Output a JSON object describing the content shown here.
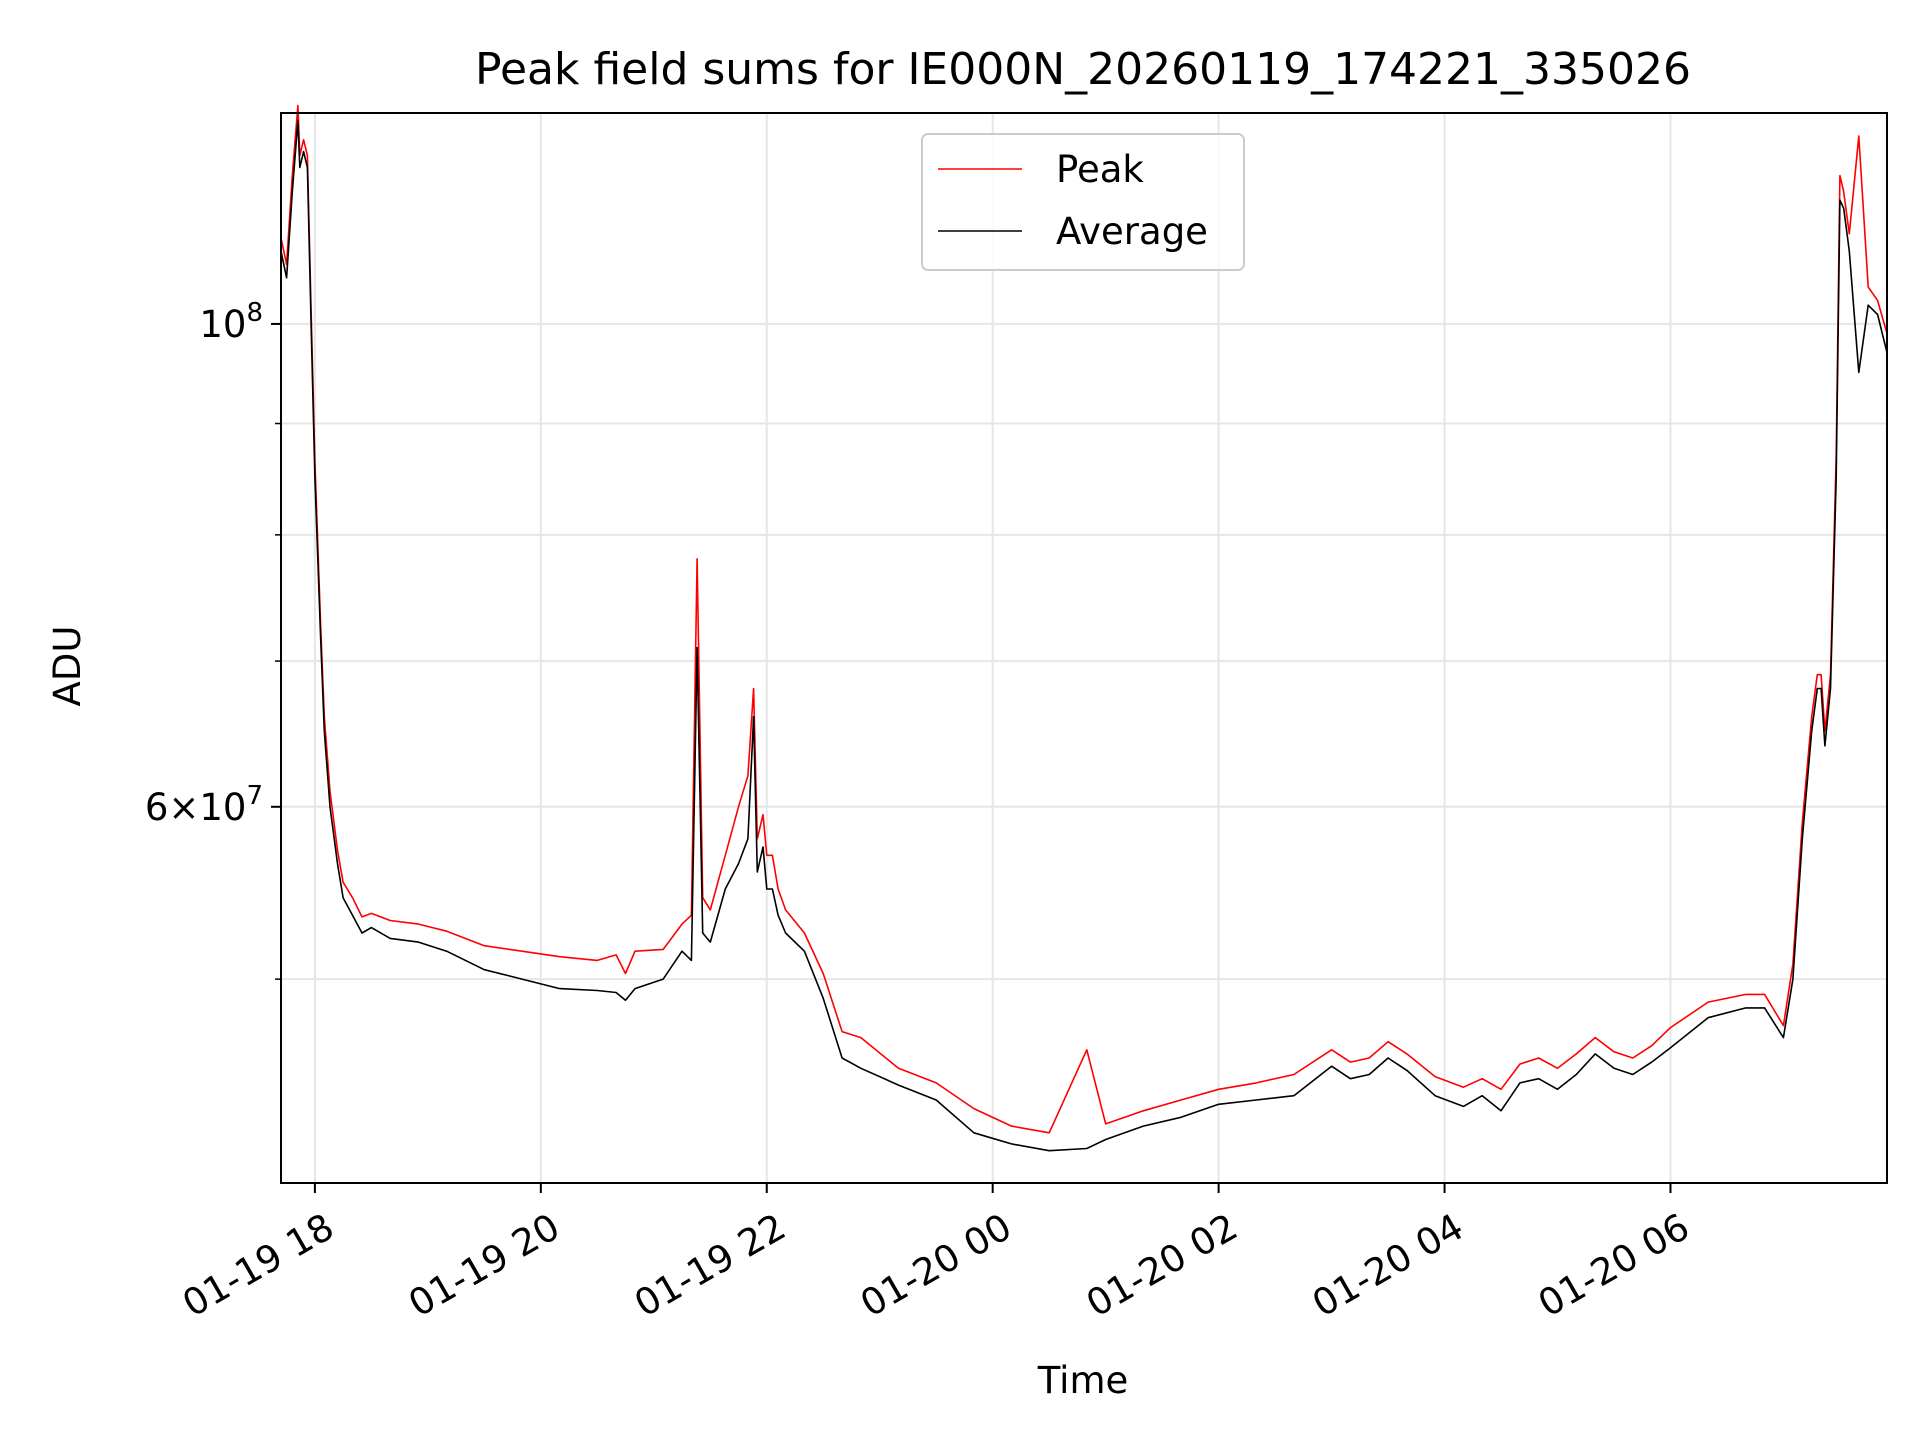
{
  "chart_data": {
    "type": "line",
    "title": "Peak field sums for IE000N_20260119_174221_335026",
    "xlabel": "Time",
    "ylabel": "ADU",
    "yscale": "log",
    "ylim": [
      40300000,
      125000000
    ],
    "xlim": [
      "2026-01-19 17:42",
      "2026-01-20 07:55"
    ],
    "grid": true,
    "legend_position": "upper center",
    "colors": {
      "Peak": "#ff0000",
      "Average": "#000000"
    },
    "x_ticks": [
      {
        "t": "2026-01-19 18:00",
        "label": "01-19 18"
      },
      {
        "t": "2026-01-19 20:00",
        "label": "01-19 20"
      },
      {
        "t": "2026-01-19 22:00",
        "label": "01-19 22"
      },
      {
        "t": "2026-01-20 00:00",
        "label": "01-20 00"
      },
      {
        "t": "2026-01-20 02:00",
        "label": "01-20 02"
      },
      {
        "t": "2026-01-20 04:00",
        "label": "01-20 04"
      },
      {
        "t": "2026-01-20 06:00",
        "label": "01-20 06"
      }
    ],
    "y_major_ticks": [
      {
        "v": 60000000,
        "mant": "6",
        "exp": "7"
      },
      {
        "v": 100000000,
        "mant": "",
        "exp": "8"
      }
    ],
    "y_minor_ticks": [
      50000000,
      70000000,
      80000000,
      90000000
    ],
    "series": [
      {
        "name": "Average",
        "x": [
          "2026-01-19 17:42",
          "2026-01-19 17:45",
          "2026-01-19 17:48",
          "2026-01-19 17:51",
          "2026-01-19 17:52",
          "2026-01-19 17:54",
          "2026-01-19 17:56",
          "2026-01-19 17:58",
          "2026-01-19 18:00",
          "2026-01-19 18:03",
          "2026-01-19 18:05",
          "2026-01-19 18:08",
          "2026-01-19 18:12",
          "2026-01-19 18:15",
          "2026-01-19 18:20",
          "2026-01-19 18:25",
          "2026-01-19 18:30",
          "2026-01-19 18:40",
          "2026-01-19 18:55",
          "2026-01-19 19:10",
          "2026-01-19 19:30",
          "2026-01-19 19:50",
          "2026-01-19 20:10",
          "2026-01-19 20:30",
          "2026-01-19 20:40",
          "2026-01-19 20:45",
          "2026-01-19 20:50",
          "2026-01-19 21:05",
          "2026-01-19 21:15",
          "2026-01-19 21:20",
          "2026-01-19 21:23",
          "2026-01-19 21:26",
          "2026-01-19 21:30",
          "2026-01-19 21:38",
          "2026-01-19 21:45",
          "2026-01-19 21:50",
          "2026-01-19 21:53",
          "2026-01-19 21:55",
          "2026-01-19 21:58",
          "2026-01-19 22:00",
          "2026-01-19 22:03",
          "2026-01-19 22:06",
          "2026-01-19 22:10",
          "2026-01-19 22:20",
          "2026-01-19 22:30",
          "2026-01-19 22:40",
          "2026-01-19 22:50",
          "2026-01-19 23:10",
          "2026-01-19 23:30",
          "2026-01-19 23:50",
          "2026-01-20 00:10",
          "2026-01-20 00:30",
          "2026-01-20 00:50",
          "2026-01-20 01:00",
          "2026-01-20 01:20",
          "2026-01-20 01:40",
          "2026-01-20 02:00",
          "2026-01-20 02:20",
          "2026-01-20 02:40",
          "2026-01-20 03:00",
          "2026-01-20 03:10",
          "2026-01-20 03:20",
          "2026-01-20 03:30",
          "2026-01-20 03:40",
          "2026-01-20 03:55",
          "2026-01-20 04:10",
          "2026-01-20 04:20",
          "2026-01-20 04:30",
          "2026-01-20 04:40",
          "2026-01-20 04:50",
          "2026-01-20 05:00",
          "2026-01-20 05:10",
          "2026-01-20 05:20",
          "2026-01-20 05:30",
          "2026-01-20 05:40",
          "2026-01-20 05:50",
          "2026-01-20 06:00",
          "2026-01-20 06:20",
          "2026-01-20 06:40",
          "2026-01-20 06:50",
          "2026-01-20 07:00",
          "2026-01-20 07:05",
          "2026-01-20 07:10",
          "2026-01-20 07:15",
          "2026-01-20 07:18",
          "2026-01-20 07:20",
          "2026-01-20 07:22",
          "2026-01-20 07:25",
          "2026-01-20 07:28",
          "2026-01-20 07:30",
          "2026-01-20 07:32",
          "2026-01-20 07:35",
          "2026-01-20 07:40",
          "2026-01-20 07:45",
          "2026-01-20 07:50",
          "2026-01-20 07:55"
        ],
        "y": [
          108000000,
          105000000,
          115000000,
          124000000,
          118000000,
          120000000,
          118000000,
          100000000,
          85000000,
          72000000,
          65000000,
          60000000,
          56500000,
          54500000,
          53500000,
          52500000,
          52800000,
          52200000,
          52000000,
          51500000,
          50500000,
          50000000,
          49500000,
          49400000,
          49300000,
          48900000,
          49500000,
          50000000,
          51500000,
          51000000,
          71000000,
          52500000,
          52000000,
          55000000,
          56500000,
          58000000,
          66000000,
          56000000,
          57500000,
          55000000,
          55000000,
          53500000,
          52500000,
          51500000,
          49000000,
          46000000,
          45500000,
          44700000,
          44000000,
          42500000,
          42000000,
          41700000,
          41800000,
          42200000,
          42800000,
          43200000,
          43800000,
          44000000,
          44200000,
          45600000,
          45000000,
          45200000,
          46000000,
          45400000,
          44200000,
          43700000,
          44200000,
          43500000,
          44800000,
          45000000,
          44500000,
          45200000,
          46200000,
          45500000,
          45200000,
          45800000,
          46500000,
          48000000,
          48500000,
          48500000,
          47000000,
          50000000,
          58000000,
          65000000,
          68000000,
          68000000,
          64000000,
          68000000,
          85000000,
          114000000,
          113000000,
          108000000,
          95000000,
          102000000,
          101000000,
          97000000
        ]
      },
      {
        "name": "Peak",
        "x": [
          "2026-01-19 17:42",
          "2026-01-19 17:45",
          "2026-01-19 17:48",
          "2026-01-19 17:51",
          "2026-01-19 17:52",
          "2026-01-19 17:54",
          "2026-01-19 17:56",
          "2026-01-19 17:58",
          "2026-01-19 18:00",
          "2026-01-19 18:03",
          "2026-01-19 18:05",
          "2026-01-19 18:08",
          "2026-01-19 18:12",
          "2026-01-19 18:15",
          "2026-01-19 18:20",
          "2026-01-19 18:25",
          "2026-01-19 18:30",
          "2026-01-19 18:40",
          "2026-01-19 18:55",
          "2026-01-19 19:10",
          "2026-01-19 19:30",
          "2026-01-19 19:50",
          "2026-01-19 20:10",
          "2026-01-19 20:30",
          "2026-01-19 20:40",
          "2026-01-19 20:45",
          "2026-01-19 20:50",
          "2026-01-19 21:05",
          "2026-01-19 21:15",
          "2026-01-19 21:20",
          "2026-01-19 21:23",
          "2026-01-19 21:26",
          "2026-01-19 21:30",
          "2026-01-19 21:38",
          "2026-01-19 21:45",
          "2026-01-19 21:50",
          "2026-01-19 21:53",
          "2026-01-19 21:55",
          "2026-01-19 21:58",
          "2026-01-19 22:00",
          "2026-01-19 22:03",
          "2026-01-19 22:06",
          "2026-01-19 22:10",
          "2026-01-19 22:20",
          "2026-01-19 22:30",
          "2026-01-19 22:40",
          "2026-01-19 22:50",
          "2026-01-19 23:10",
          "2026-01-19 23:30",
          "2026-01-19 23:50",
          "2026-01-20 00:10",
          "2026-01-20 00:30",
          "2026-01-20 00:50",
          "2026-01-20 01:00",
          "2026-01-20 01:20",
          "2026-01-20 01:40",
          "2026-01-20 02:00",
          "2026-01-20 02:20",
          "2026-01-20 02:40",
          "2026-01-20 03:00",
          "2026-01-20 03:10",
          "2026-01-20 03:20",
          "2026-01-20 03:30",
          "2026-01-20 03:40",
          "2026-01-20 03:55",
          "2026-01-20 04:10",
          "2026-01-20 04:20",
          "2026-01-20 04:30",
          "2026-01-20 04:40",
          "2026-01-20 04:50",
          "2026-01-20 05:00",
          "2026-01-20 05:10",
          "2026-01-20 05:20",
          "2026-01-20 05:30",
          "2026-01-20 05:40",
          "2026-01-20 05:50",
          "2026-01-20 06:00",
          "2026-01-20 06:20",
          "2026-01-20 06:40",
          "2026-01-20 06:50",
          "2026-01-20 07:00",
          "2026-01-20 07:05",
          "2026-01-20 07:10",
          "2026-01-20 07:15",
          "2026-01-20 07:18",
          "2026-01-20 07:20",
          "2026-01-20 07:22",
          "2026-01-20 07:25",
          "2026-01-20 07:28",
          "2026-01-20 07:30",
          "2026-01-20 07:32",
          "2026-01-20 07:35",
          "2026-01-20 07:40",
          "2026-01-20 07:45",
          "2026-01-20 07:50",
          "2026-01-20 07:55"
        ],
        "y": [
          109500000,
          106500000,
          117000000,
          126000000,
          119500000,
          121500000,
          119500000,
          101500000,
          86500000,
          73000000,
          66000000,
          61000000,
          57300000,
          55400000,
          54500000,
          53400000,
          53600000,
          53200000,
          53000000,
          52600000,
          51800000,
          51500000,
          51200000,
          51000000,
          51300000,
          50300000,
          51500000,
          51600000,
          53000000,
          53500000,
          78000000,
          54500000,
          53800000,
          57000000,
          60000000,
          62000000,
          68000000,
          58000000,
          59500000,
          57000000,
          57000000,
          55000000,
          53800000,
          52500000,
          50300000,
          47300000,
          47000000,
          45500000,
          44800000,
          43600000,
          42800000,
          42500000,
          46400000,
          42900000,
          43500000,
          44000000,
          44500000,
          44800000,
          45200000,
          46400000,
          45800000,
          46000000,
          46800000,
          46200000,
          45100000,
          44600000,
          45000000,
          44500000,
          45700000,
          46000000,
          45500000,
          46200000,
          47000000,
          46300000,
          46000000,
          46600000,
          47500000,
          48800000,
          49200000,
          49200000,
          47600000,
          50800000,
          59000000,
          66000000,
          69000000,
          69000000,
          65000000,
          69000000,
          87000000,
          117000000,
          115000000,
          110000000,
          122000000,
          104000000,
          102500000,
          99000000
        ]
      }
    ]
  }
}
